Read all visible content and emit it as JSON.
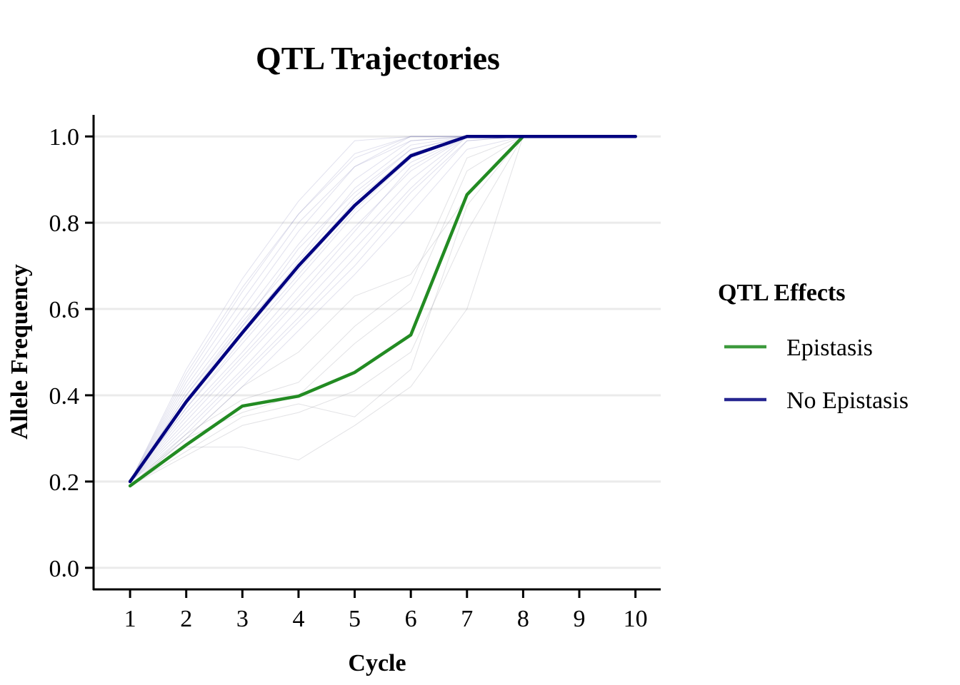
{
  "chart_data": {
    "type": "line",
    "title": "QTL Trajectories",
    "xlabel": "Cycle",
    "ylabel": "Allele Frequency",
    "x": [
      1,
      2,
      3,
      4,
      5,
      6,
      7,
      8,
      9,
      10
    ],
    "x_tick_labels": [
      "1",
      "2",
      "3",
      "4",
      "5",
      "6",
      "7",
      "8",
      "9",
      "10"
    ],
    "y_ticks": [
      0.0,
      0.2,
      0.4,
      0.6,
      0.8,
      1.0
    ],
    "y_tick_labels": [
      "0.0",
      "0.2",
      "0.4",
      "0.6",
      "0.8",
      "1.0"
    ],
    "xlim": [
      0.35,
      10.45
    ],
    "ylim": [
      -0.05,
      1.05
    ],
    "grid": "horizontal major",
    "legend": {
      "title": "QTL Effects",
      "placement": "right"
    },
    "series": [
      {
        "name": "Epistasis",
        "color": "#228B22",
        "values": [
          0.19,
          0.285,
          0.375,
          0.398,
          0.453,
          0.54,
          0.865,
          1.0,
          1.0,
          1.0
        ]
      },
      {
        "name": "No Epistasis",
        "color": "#000080",
        "values": [
          0.2,
          0.385,
          0.545,
          0.7,
          0.84,
          0.955,
          1.0,
          1.0,
          1.0,
          1.0
        ]
      }
    ],
    "replicates": {
      "No Epistasis": [
        [
          0.2,
          0.46,
          0.67,
          0.85,
          0.99,
          1.0,
          1.0,
          1.0,
          1.0,
          1.0
        ],
        [
          0.2,
          0.44,
          0.64,
          0.82,
          0.96,
          1.0,
          1.0,
          1.0,
          1.0,
          1.0
        ],
        [
          0.2,
          0.42,
          0.6,
          0.78,
          0.93,
          1.0,
          1.0,
          1.0,
          1.0,
          1.0
        ],
        [
          0.2,
          0.41,
          0.58,
          0.75,
          0.9,
          0.99,
          1.0,
          1.0,
          1.0,
          1.0
        ],
        [
          0.2,
          0.4,
          0.57,
          0.72,
          0.88,
          0.98,
          1.0,
          1.0,
          1.0,
          1.0
        ],
        [
          0.2,
          0.39,
          0.55,
          0.71,
          0.86,
          0.97,
          1.0,
          1.0,
          1.0,
          1.0
        ],
        [
          0.2,
          0.38,
          0.54,
          0.69,
          0.84,
          0.96,
          1.0,
          1.0,
          1.0,
          1.0
        ],
        [
          0.2,
          0.37,
          0.52,
          0.67,
          0.82,
          0.94,
          1.0,
          1.0,
          1.0,
          1.0
        ],
        [
          0.2,
          0.36,
          0.5,
          0.65,
          0.79,
          0.92,
          1.0,
          1.0,
          1.0,
          1.0
        ],
        [
          0.2,
          0.34,
          0.48,
          0.62,
          0.76,
          0.9,
          1.0,
          1.0,
          1.0,
          1.0
        ],
        [
          0.2,
          0.33,
          0.46,
          0.6,
          0.74,
          0.88,
          1.0,
          1.0,
          1.0,
          1.0
        ],
        [
          0.2,
          0.31,
          0.44,
          0.57,
          0.7,
          0.85,
          0.99,
          1.0,
          1.0,
          1.0
        ],
        [
          0.2,
          0.3,
          0.42,
          0.55,
          0.68,
          0.82,
          0.97,
          1.0,
          1.0,
          1.0
        ],
        [
          0.2,
          0.43,
          0.62,
          0.8,
          0.93,
          0.99,
          1.0,
          1.0,
          1.0,
          1.0
        ],
        [
          0.2,
          0.4,
          0.56,
          0.74,
          0.87,
          0.97,
          1.0,
          1.0,
          1.0,
          1.0
        ],
        [
          0.2,
          0.37,
          0.53,
          0.68,
          0.83,
          0.95,
          1.0,
          1.0,
          1.0,
          1.0
        ],
        [
          0.2,
          0.35,
          0.49,
          0.63,
          0.78,
          0.93,
          1.0,
          1.0,
          1.0,
          1.0
        ],
        [
          0.2,
          0.32,
          0.45,
          0.58,
          0.72,
          0.87,
          0.99,
          1.0,
          1.0,
          1.0
        ],
        [
          0.2,
          0.45,
          0.65,
          0.82,
          0.95,
          1.0,
          1.0,
          1.0,
          1.0,
          1.0
        ],
        [
          0.2,
          0.39,
          0.56,
          0.7,
          0.85,
          0.96,
          1.0,
          1.0,
          1.0,
          1.0
        ]
      ],
      "Epistasis": [
        [
          0.19,
          0.28,
          0.28,
          0.25,
          0.33,
          0.42,
          0.6,
          1.0,
          1.0,
          1.0
        ],
        [
          0.19,
          0.3,
          0.42,
          0.5,
          0.63,
          0.68,
          0.86,
          1.0,
          1.0,
          1.0
        ],
        [
          0.19,
          0.27,
          0.35,
          0.38,
          0.35,
          0.46,
          0.84,
          1.0,
          1.0,
          1.0
        ],
        [
          0.19,
          0.3,
          0.36,
          0.4,
          0.52,
          0.62,
          0.92,
          1.0,
          1.0,
          1.0
        ],
        [
          0.19,
          0.26,
          0.33,
          0.36,
          0.41,
          0.5,
          0.78,
          1.0,
          1.0,
          1.0
        ],
        [
          0.19,
          0.31,
          0.39,
          0.43,
          0.56,
          0.66,
          0.95,
          1.0,
          1.0,
          1.0
        ]
      ]
    }
  }
}
